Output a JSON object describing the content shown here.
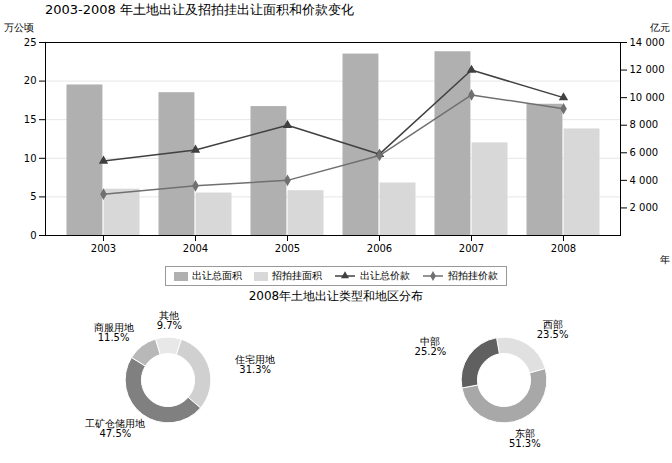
{
  "chart_data": [
    {
      "type": "bar",
      "title": "2003-2008 年土地出让及招拍挂出让面积和价款变化",
      "categories": [
        "2003",
        "2004",
        "2005",
        "2006",
        "2007",
        "2008"
      ],
      "xlabel": "年",
      "ylabel": "万公顷",
      "y2label": "亿元",
      "ylim": [
        0,
        25
      ],
      "yticks": [
        0,
        5,
        10,
        15,
        20,
        25
      ],
      "y2lim": [
        0,
        14000
      ],
      "y2ticks": [
        {
          "value": 2000,
          "label": "2 000"
        },
        {
          "value": 4000,
          "label": "4 000"
        },
        {
          "value": 6000,
          "label": "6 000"
        },
        {
          "value": 8000,
          "label": "8 000"
        },
        {
          "value": 10000,
          "label": "10 000"
        },
        {
          "value": 12000,
          "label": "12 000"
        },
        {
          "value": 14000,
          "label": "14 000"
        }
      ],
      "grid": true,
      "legend": "bottom",
      "series": [
        {
          "name": "出让总面积",
          "type": "bar",
          "color": "#b0b0b0",
          "values": [
            19.5,
            18.5,
            16.7,
            23.5,
            23.8,
            17.0
          ]
        },
        {
          "name": "招拍挂面积",
          "type": "bar",
          "color": "#d8d8d8",
          "values": [
            6.0,
            5.5,
            5.8,
            6.8,
            12.0,
            13.8
          ]
        },
        {
          "name": "出让总价款",
          "type": "line",
          "axis": "y2",
          "color": "#404040",
          "marker": "triangle",
          "values": [
            5400,
            6200,
            8000,
            5900,
            12000,
            10000
          ]
        },
        {
          "name": "招拍挂价款",
          "type": "line",
          "axis": "y2",
          "color": "#707070",
          "marker": "diamond",
          "values": [
            3000,
            3600,
            4000,
            5800,
            10200,
            9200
          ]
        }
      ]
    },
    {
      "type": "pie",
      "title": "2008年土地出让类型和地区分布",
      "categories": [
        "住宅用地",
        "工矿仓储用地",
        "商服用地",
        "其他"
      ],
      "values": [
        31.3,
        47.5,
        11.5,
        9.7
      ],
      "value_labels": [
        "31.3%",
        "47.5%",
        "11.5%",
        "9.7%"
      ],
      "colors": [
        "#d0d0d0",
        "#808080",
        "#b8b8b8",
        "#e8e8e8"
      ],
      "data_labels": true
    },
    {
      "type": "pie",
      "categories": [
        "西部",
        "东部",
        "中部"
      ],
      "values": [
        23.5,
        51.3,
        25.2
      ],
      "value_labels": [
        "23.5%",
        "51.3%",
        "25.2%"
      ],
      "colors": [
        "#e0e0e0",
        "#a8a8a8",
        "#606060"
      ],
      "data_labels": true
    }
  ]
}
